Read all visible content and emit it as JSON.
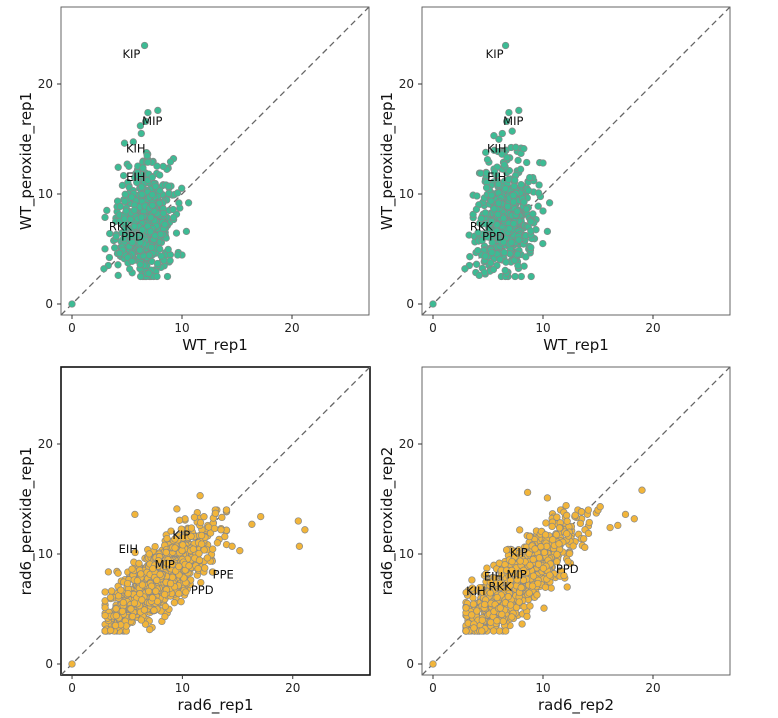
{
  "colors": {
    "wt_fill": "#3dbb94",
    "rad6_fill": "#f2b53a",
    "point_edge": "#888888",
    "diagonal": "#666666"
  },
  "chart_data": [
    {
      "type": "scatter",
      "xlabel": "WT_rep1",
      "ylabel": "WT_peroxide_rep1",
      "xlim": [
        -1,
        27
      ],
      "ylim": [
        -1,
        27
      ],
      "xticks": [
        0,
        10,
        20
      ],
      "yticks": [
        0,
        10,
        20
      ],
      "diagonal": true,
      "color": "wt",
      "cloud": {
        "n": 650,
        "xmin": 3,
        "xmax": 10,
        "ymin": 2.5,
        "ymax": 17.5
      },
      "points": [
        [
          0,
          0
        ],
        [
          6.6,
          23.5
        ],
        [
          6.9,
          17.4
        ],
        [
          7.8,
          17.6
        ],
        [
          6.7,
          16.6
        ],
        [
          6.3,
          15.5
        ],
        [
          9.6,
          10.1
        ],
        [
          10.6,
          9.2
        ],
        [
          10.4,
          6.6
        ],
        [
          3.3,
          3.5
        ],
        [
          4.2,
          2.6
        ],
        [
          2.9,
          3.2
        ]
      ],
      "labels": [
        {
          "text": "KIP",
          "x": 5.4,
          "y": 22.7
        },
        {
          "text": "MIP",
          "x": 7.3,
          "y": 16.6
        },
        {
          "text": "KIH",
          "x": 5.8,
          "y": 14.1
        },
        {
          "text": "EIH",
          "x": 5.8,
          "y": 11.5
        },
        {
          "text": "RKK",
          "x": 4.4,
          "y": 7.0
        },
        {
          "text": "PPD",
          "x": 5.5,
          "y": 6.1
        }
      ]
    },
    {
      "type": "scatter",
      "xlabel": "WT_rep1",
      "ylabel": "WT_peroxide_rep1",
      "xlim": [
        -1,
        27
      ],
      "ylim": [
        -1,
        27
      ],
      "xticks": [
        0,
        10,
        20
      ],
      "yticks": [
        0,
        10,
        20
      ],
      "diagonal": true,
      "color": "wt",
      "cloud": {
        "n": 650,
        "xmin": 3,
        "xmax": 10,
        "ymin": 2.5,
        "ymax": 17.5
      },
      "points": [
        [
          0,
          0
        ],
        [
          6.6,
          23.5
        ],
        [
          6.9,
          17.4
        ],
        [
          7.8,
          17.6
        ],
        [
          6.7,
          16.6
        ],
        [
          6.3,
          15.5
        ],
        [
          9.6,
          10.1
        ],
        [
          10.6,
          9.2
        ],
        [
          10.4,
          6.6
        ],
        [
          3.3,
          3.5
        ],
        [
          4.2,
          2.6
        ],
        [
          2.9,
          3.2
        ]
      ],
      "labels": [
        {
          "text": "KIP",
          "x": 5.6,
          "y": 22.7
        },
        {
          "text": "MIP",
          "x": 7.3,
          "y": 16.6
        },
        {
          "text": "KIH",
          "x": 5.8,
          "y": 14.1
        },
        {
          "text": "EIH",
          "x": 5.8,
          "y": 11.5
        },
        {
          "text": "RKK",
          "x": 4.4,
          "y": 7.0
        },
        {
          "text": "PPD",
          "x": 5.5,
          "y": 6.1
        }
      ]
    },
    {
      "type": "scatter",
      "xlabel": "rad6_rep1",
      "ylabel": "rad6_peroxide_rep1",
      "xlim": [
        -1,
        27
      ],
      "ylim": [
        -1,
        27
      ],
      "xticks": [
        0,
        10,
        20
      ],
      "yticks": [
        0,
        10,
        20
      ],
      "diagonal": true,
      "color": "rad6",
      "cloud": {
        "n": 1100,
        "xmin": 3,
        "xmax": 14,
        "ymin": 3,
        "ymax": 14
      },
      "points": [
        [
          0,
          0
        ],
        [
          20.5,
          13.0
        ],
        [
          21.1,
          12.2
        ],
        [
          20.6,
          10.7
        ],
        [
          17.1,
          13.4
        ],
        [
          16.3,
          12.7
        ],
        [
          15.2,
          10.3
        ],
        [
          14.5,
          10.7
        ],
        [
          11.6,
          15.3
        ],
        [
          9.5,
          14.1
        ],
        [
          5.7,
          13.6
        ],
        [
          13.0,
          13.7
        ],
        [
          13.5,
          12.2
        ]
      ],
      "labels": [
        {
          "text": "KIP",
          "x": 9.9,
          "y": 11.7
        },
        {
          "text": "EIH",
          "x": 5.1,
          "y": 10.4
        },
        {
          "text": "MIP",
          "x": 8.4,
          "y": 9.0
        },
        {
          "text": "PPE",
          "x": 13.7,
          "y": 8.1
        },
        {
          "text": "PPD",
          "x": 11.8,
          "y": 6.7
        }
      ]
    },
    {
      "type": "scatter",
      "xlabel": "rad6_rep2",
      "ylabel": "rad6_peroxide_rep2",
      "xlim": [
        -1,
        27
      ],
      "ylim": [
        -1,
        27
      ],
      "xticks": [
        0,
        10,
        20
      ],
      "yticks": [
        0,
        10,
        20
      ],
      "diagonal": true,
      "color": "rad6",
      "cloud": {
        "n": 1100,
        "xmin": 3,
        "xmax": 15,
        "ymin": 3,
        "ymax": 14
      },
      "points": [
        [
          0,
          0
        ],
        [
          19.0,
          15.8
        ],
        [
          15.2,
          14.3
        ],
        [
          16.8,
          12.6
        ],
        [
          16.1,
          12.4
        ],
        [
          17.5,
          13.6
        ],
        [
          18.3,
          13.2
        ],
        [
          10.4,
          15.1
        ],
        [
          8.6,
          15.6
        ],
        [
          12.1,
          14.4
        ],
        [
          13.8,
          10.6
        ],
        [
          12.2,
          7.0
        ]
      ],
      "labels": [
        {
          "text": "KIP",
          "x": 7.8,
          "y": 10.1
        },
        {
          "text": "PPD",
          "x": 12.2,
          "y": 8.6
        },
        {
          "text": "EIH",
          "x": 5.5,
          "y": 7.9
        },
        {
          "text": "MIP",
          "x": 7.6,
          "y": 8.1
        },
        {
          "text": "RKK",
          "x": 6.1,
          "y": 7.0
        },
        {
          "text": "KIH",
          "x": 3.9,
          "y": 6.6
        }
      ]
    }
  ]
}
